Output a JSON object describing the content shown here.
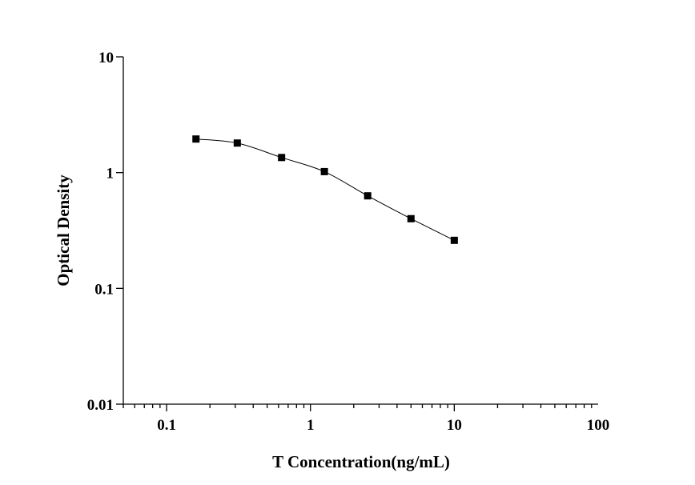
{
  "chart_data": {
    "type": "line",
    "xlabel": "T Concentration(ng/mL)",
    "ylabel": "Optical Density",
    "xscale": "log",
    "yscale": "log",
    "xlim": [
      0.05,
      100
    ],
    "ylim": [
      0.01,
      10
    ],
    "x_ticks": [
      {
        "value": 0.1,
        "label": "0.1"
      },
      {
        "value": 1,
        "label": "1"
      },
      {
        "value": 10,
        "label": "10"
      },
      {
        "value": 100,
        "label": "100"
      }
    ],
    "y_ticks": [
      {
        "value": 0.01,
        "label": "0.01"
      },
      {
        "value": 0.1,
        "label": "0.1"
      },
      {
        "value": 1,
        "label": "1"
      },
      {
        "value": 10,
        "label": "10"
      }
    ],
    "grid": false,
    "marker": "square",
    "series": [
      {
        "x": [
          0.16,
          0.31,
          0.63,
          1.25,
          2.5,
          5,
          10
        ],
        "y": [
          1.95,
          1.8,
          1.35,
          1.02,
          0.63,
          0.4,
          0.26
        ]
      }
    ],
    "colors": {
      "line": "#000000",
      "marker": "#000000",
      "axis": "#000000"
    }
  }
}
